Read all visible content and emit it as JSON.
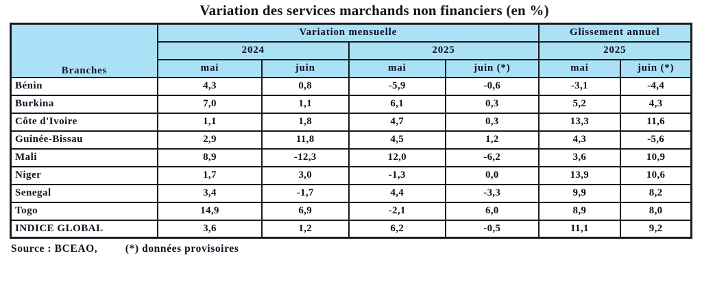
{
  "chart_data": {
    "type": "table",
    "title": "Variation des services marchands non financiers (en %)",
    "row_header_label": "Branches",
    "groups": [
      {
        "label": "Variation mensuelle",
        "years": [
          {
            "label": "2024",
            "months": [
              "mai",
              "juin"
            ]
          },
          {
            "label": "2025",
            "months": [
              "mai",
              "juin (*)"
            ]
          }
        ]
      },
      {
        "label": "Glissement annuel",
        "years": [
          {
            "label": "2025",
            "months": [
              "mai",
              "juin (*)"
            ]
          }
        ]
      }
    ],
    "columns": [
      "Variation mensuelle 2024 mai",
      "Variation mensuelle 2024 juin",
      "Variation mensuelle 2025 mai",
      "Variation mensuelle 2025 juin (*)",
      "Glissement annuel 2025 mai",
      "Glissement annuel 2025 juin (*)"
    ],
    "rows": [
      {
        "branch": "Bénin",
        "values": [
          4.3,
          0.8,
          -5.9,
          -0.6,
          -3.1,
          -4.4
        ]
      },
      {
        "branch": "Burkina",
        "values": [
          7.0,
          1.1,
          6.1,
          0.3,
          5.2,
          4.3
        ]
      },
      {
        "branch": "Côte d'Ivoire",
        "values": [
          1.1,
          1.8,
          4.7,
          0.3,
          13.3,
          11.6
        ]
      },
      {
        "branch": "Guinée-Bissau",
        "values": [
          2.9,
          11.8,
          4.5,
          1.2,
          4.3,
          -5.6
        ]
      },
      {
        "branch": "Mali",
        "values": [
          8.9,
          -12.3,
          12.0,
          -6.2,
          3.6,
          10.9
        ]
      },
      {
        "branch": "Niger",
        "values": [
          1.7,
          3.0,
          -1.3,
          0.0,
          13.9,
          10.6
        ]
      },
      {
        "branch": "Senegal",
        "values": [
          3.4,
          -1.7,
          4.4,
          -3.3,
          9.9,
          8.2
        ]
      },
      {
        "branch": "Togo",
        "values": [
          14.9,
          6.9,
          -2.1,
          6.0,
          8.9,
          8.0
        ]
      },
      {
        "branch": "INDICE GLOBAL",
        "values": [
          3.6,
          1.2,
          6.2,
          -0.5,
          11.1,
          9.2
        ]
      }
    ],
    "decimal_separator": ","
  },
  "footer": {
    "source": "Source : BCEAO,",
    "note": "(*) données provisoires"
  },
  "colors": {
    "header_bg": "#aae1f6",
    "border_color": "#1a1a1a",
    "text_color": "#101020"
  }
}
